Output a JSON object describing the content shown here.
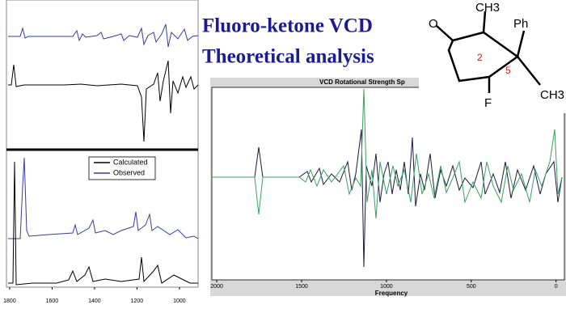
{
  "heading": [
    "Fluoro-ketone VCD",
    "Theoretical analysis"
  ],
  "left_panel": {
    "legend": [
      "Calculated",
      "Observed"
    ],
    "xlim": [
      1815,
      912
    ],
    "xticks": [
      1800,
      1600,
      1400,
      1200,
      1000
    ]
  },
  "right_panel": {
    "title": "VCD Rotational Strength Sp",
    "x_label": "Frequency",
    "xlim": [
      2029,
      -49
    ],
    "xticks": [
      2000,
      1500,
      1000,
      500,
      0
    ]
  },
  "molecule": {
    "labels": [
      "O",
      "CH3",
      "Ph",
      "2",
      "5",
      "F",
      "CH3"
    ]
  }
}
